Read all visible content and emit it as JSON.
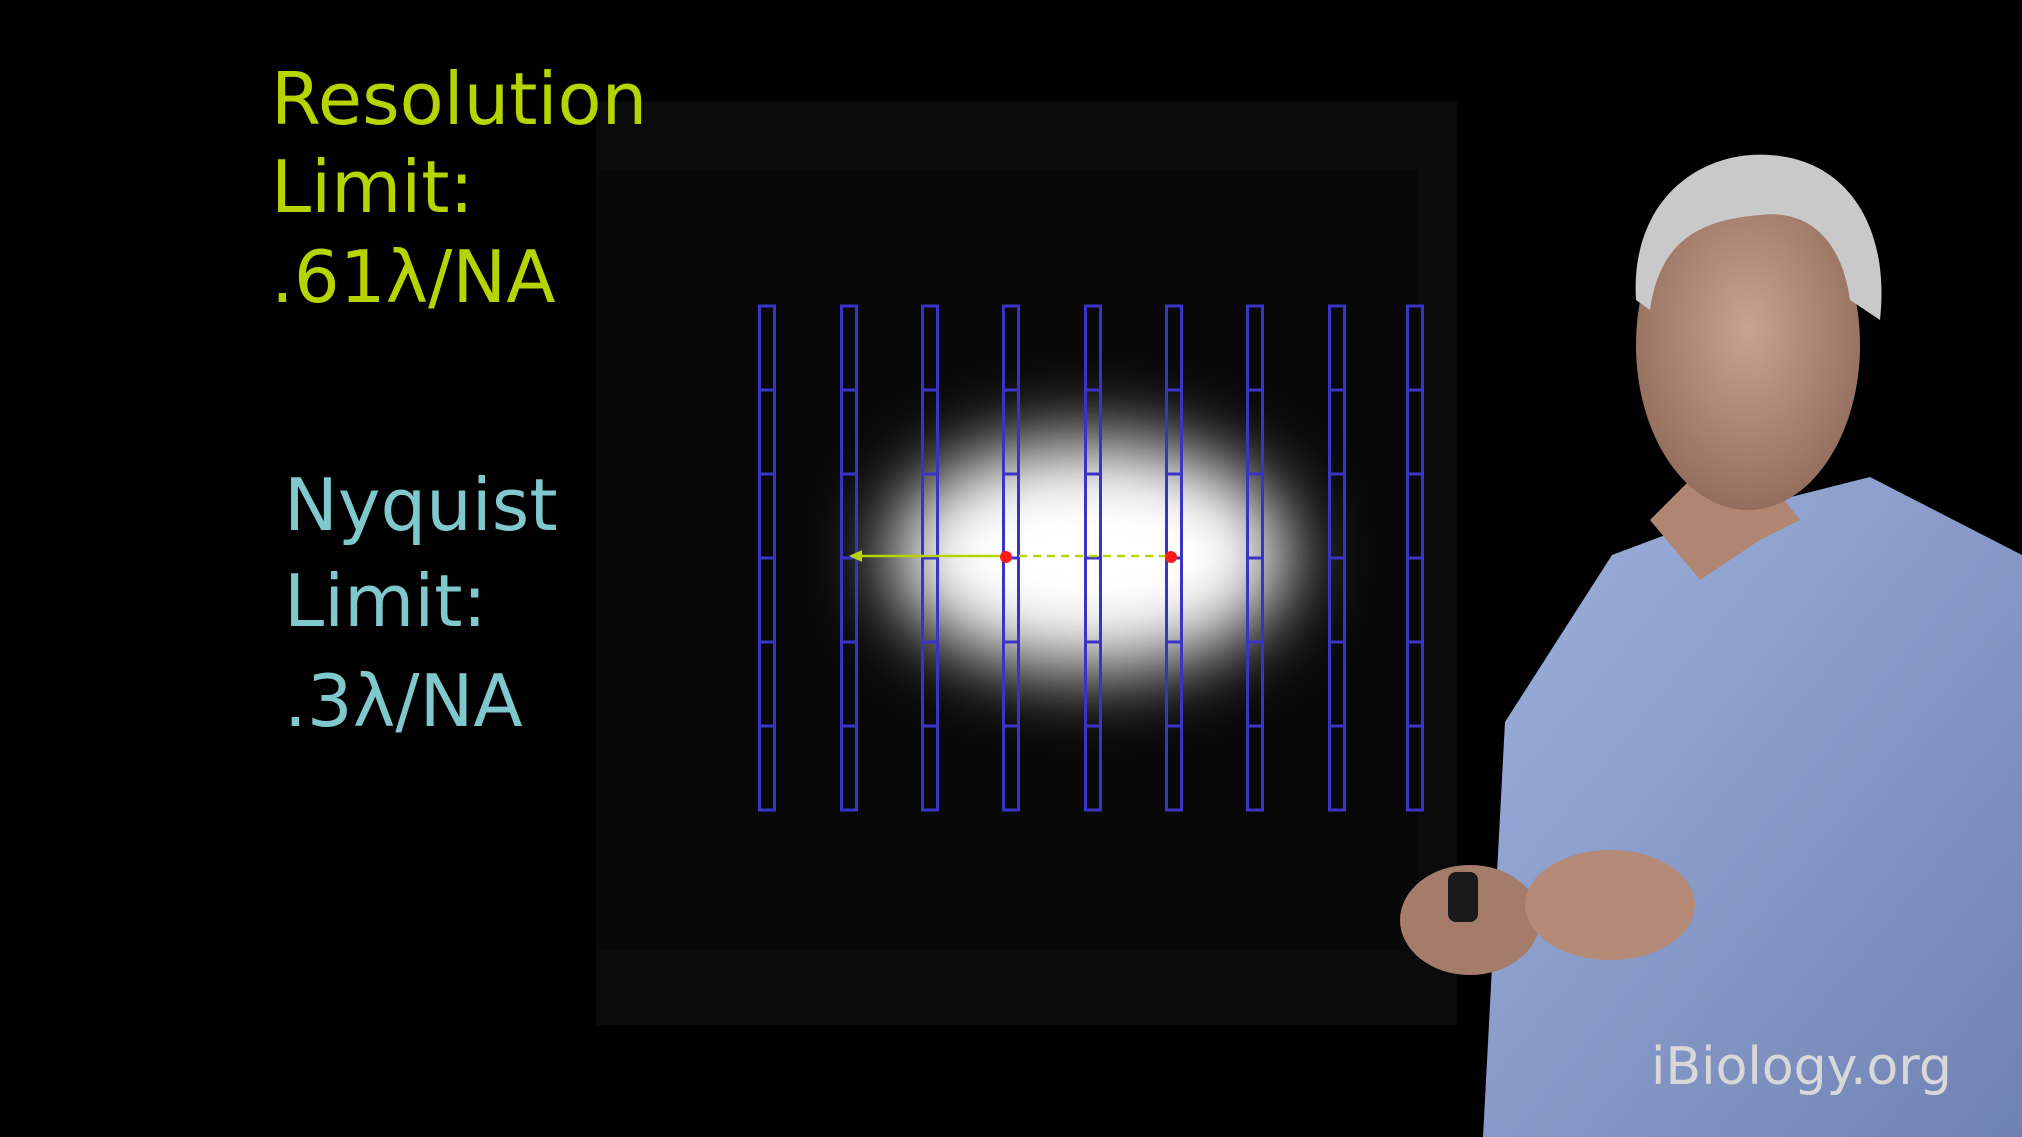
{
  "slide": {
    "resolution_limit": {
      "lines": [
        "Resolution",
        "Limit:",
        ".61λ/NA"
      ]
    },
    "nyquist_limit": {
      "lines": [
        "Nyquist",
        "Limit:",
        ".3λ/NA"
      ]
    }
  },
  "watermark": "iBiology.org"
}
